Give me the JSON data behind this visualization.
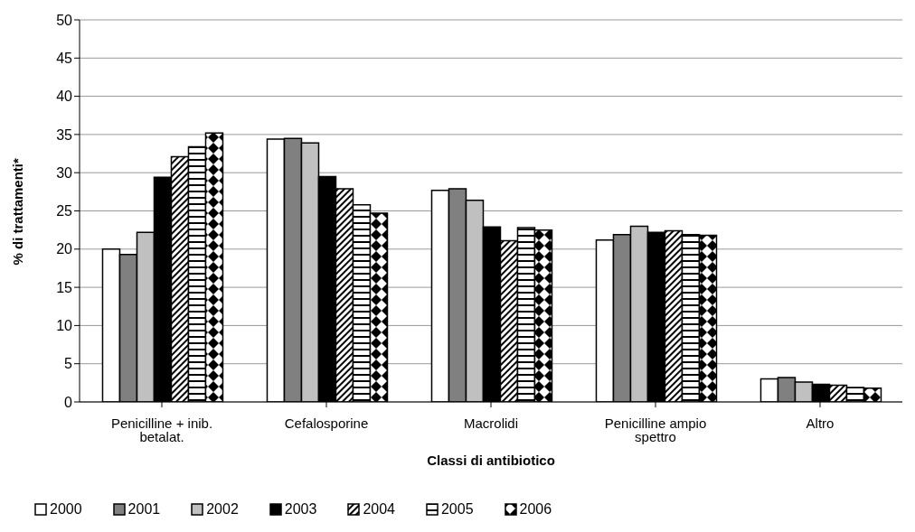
{
  "chart_data": {
    "type": "bar",
    "xlabel": "Classi di antibiotico",
    "ylabel": "% di trattamenti*",
    "categories": [
      "Penicilline + inib. betalat.",
      "Cefalosporine",
      "Macrolidi",
      "Penicilline ampio spettro",
      "Altro"
    ],
    "series": [
      {
        "name": "2000",
        "color": "#ffffff",
        "values": [
          20.0,
          34.4,
          27.7,
          21.2,
          3.0
        ]
      },
      {
        "name": "2001",
        "color": "#808080",
        "values": [
          19.3,
          34.5,
          27.9,
          21.9,
          3.2
        ]
      },
      {
        "name": "2002",
        "color": "#c0c0c0",
        "values": [
          22.2,
          33.9,
          26.4,
          23.0,
          2.6
        ]
      },
      {
        "name": "2003",
        "color": "#000000",
        "values": [
          29.4,
          29.5,
          22.9,
          22.2,
          2.3
        ]
      },
      {
        "name": "2004",
        "color": "#000000",
        "values": [
          32.1,
          27.9,
          21.1,
          22.4,
          2.2
        ]
      },
      {
        "name": "2005",
        "color": "#000000",
        "values": [
          33.4,
          25.8,
          22.8,
          21.9,
          1.9
        ]
      },
      {
        "name": "2006",
        "color": "#000000",
        "values": [
          35.2,
          24.7,
          22.5,
          21.8,
          1.8
        ]
      }
    ],
    "ylim": [
      0,
      50
    ],
    "yticks": [
      0,
      5,
      10,
      15,
      20,
      25,
      30,
      35,
      40,
      45,
      50
    ],
    "grid": "y",
    "legend": "bottom"
  }
}
